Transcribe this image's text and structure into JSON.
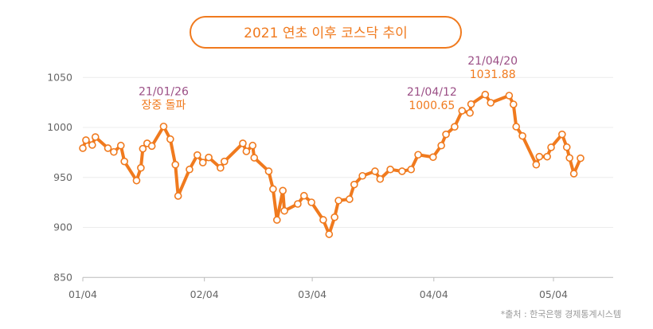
{
  "chart_data": {
    "type": "line",
    "title": "2021 연초 이후 코스닥 추이",
    "xlabel": "",
    "ylabel": "",
    "x_unit": "days since 01/04",
    "x_ticks": [
      {
        "day": 0,
        "label": "01/04"
      },
      {
        "day": 31,
        "label": "02/04"
      },
      {
        "day": 58.5,
        "label": "03/04"
      },
      {
        "day": 89.5,
        "label": "04/04"
      },
      {
        "day": 120,
        "label": "05/04"
      }
    ],
    "y_ticks": [
      850,
      900,
      950,
      1000,
      1050
    ],
    "ylim": [
      850,
      1050
    ],
    "xlim": [
      0,
      135
    ],
    "grid": true,
    "series": [
      {
        "name": "코스닥",
        "color": "#f07a1e",
        "points": [
          [
            0,
            979.3
          ],
          [
            0.8,
            987.3
          ],
          [
            2.4,
            982.5
          ],
          [
            3.2,
            990.4
          ],
          [
            6.4,
            979.3
          ],
          [
            7.9,
            975.5
          ],
          [
            9.7,
            981.9
          ],
          [
            10.6,
            966
          ],
          [
            13.7,
            946.9
          ],
          [
            14.8,
            959.6
          ],
          [
            15.3,
            978.7
          ],
          [
            16.4,
            984.1
          ],
          [
            17.6,
            981.4
          ],
          [
            20.6,
            1001
          ],
          [
            22.3,
            988.3
          ],
          [
            23.6,
            962.8
          ],
          [
            24.3,
            931.5
          ],
          [
            27.2,
            958
          ],
          [
            29.2,
            972.4
          ],
          [
            30.6,
            964.9
          ],
          [
            32.1,
            970
          ],
          [
            35.1,
            959.6
          ],
          [
            36.1,
            966
          ],
          [
            40.8,
            984.1
          ],
          [
            41.7,
            976.1
          ],
          [
            43.3,
            981.9
          ],
          [
            43.7,
            969.7
          ],
          [
            47.4,
            956.2
          ],
          [
            48.5,
            938.4
          ],
          [
            49.5,
            907.5
          ],
          [
            51,
            936.8
          ],
          [
            51.4,
            916.6
          ],
          [
            54.8,
            923.5
          ],
          [
            56.4,
            931.7
          ],
          [
            58.3,
            925.1
          ],
          [
            61.3,
            907.6
          ],
          [
            62.8,
            893.2
          ],
          [
            64.2,
            910.2
          ],
          [
            65.2,
            926.9
          ],
          [
            68,
            928.3
          ],
          [
            69.2,
            942.9
          ],
          [
            71.3,
            951.6
          ],
          [
            74.5,
            956.2
          ],
          [
            75.8,
            948.4
          ],
          [
            78.4,
            958
          ],
          [
            81.4,
            956.2
          ],
          [
            83.7,
            958
          ],
          [
            85.5,
            972.7
          ],
          [
            89.3,
            970.3
          ],
          [
            91.4,
            981.9
          ],
          [
            92.6,
            993.1
          ],
          [
            94.8,
            1000.65
          ],
          [
            96.7,
            1016.7
          ],
          [
            98.7,
            1014.6
          ],
          [
            99,
            1023.3
          ],
          [
            102.6,
            1032.9
          ],
          [
            104,
            1024.7
          ],
          [
            108.7,
            1031.88
          ],
          [
            109.8,
            1023.1
          ],
          [
            110.5,
            1000.8
          ],
          [
            112.1,
            991.5
          ],
          [
            115.6,
            962.8
          ],
          [
            116.4,
            970.8
          ],
          [
            118.4,
            970.8
          ],
          [
            119.4,
            980.1
          ],
          [
            122.2,
            993.1
          ],
          [
            123.4,
            980.3
          ],
          [
            124.1,
            969.5
          ],
          [
            125.2,
            953.8
          ],
          [
            126.9,
            969.2
          ]
        ]
      }
    ],
    "annotations": [
      {
        "date": "21/01/26",
        "text": "장중 돌파",
        "day": 20.6,
        "value": 1001
      },
      {
        "date": "21/04/12",
        "text": "1000.65",
        "day": 89.0,
        "value": 1000.65
      },
      {
        "date": "21/04/20",
        "text": "1031.88",
        "day": 104.5,
        "value": 1031.88
      }
    ],
    "source": "*출처 : 한국은행 경제통계시스템"
  }
}
